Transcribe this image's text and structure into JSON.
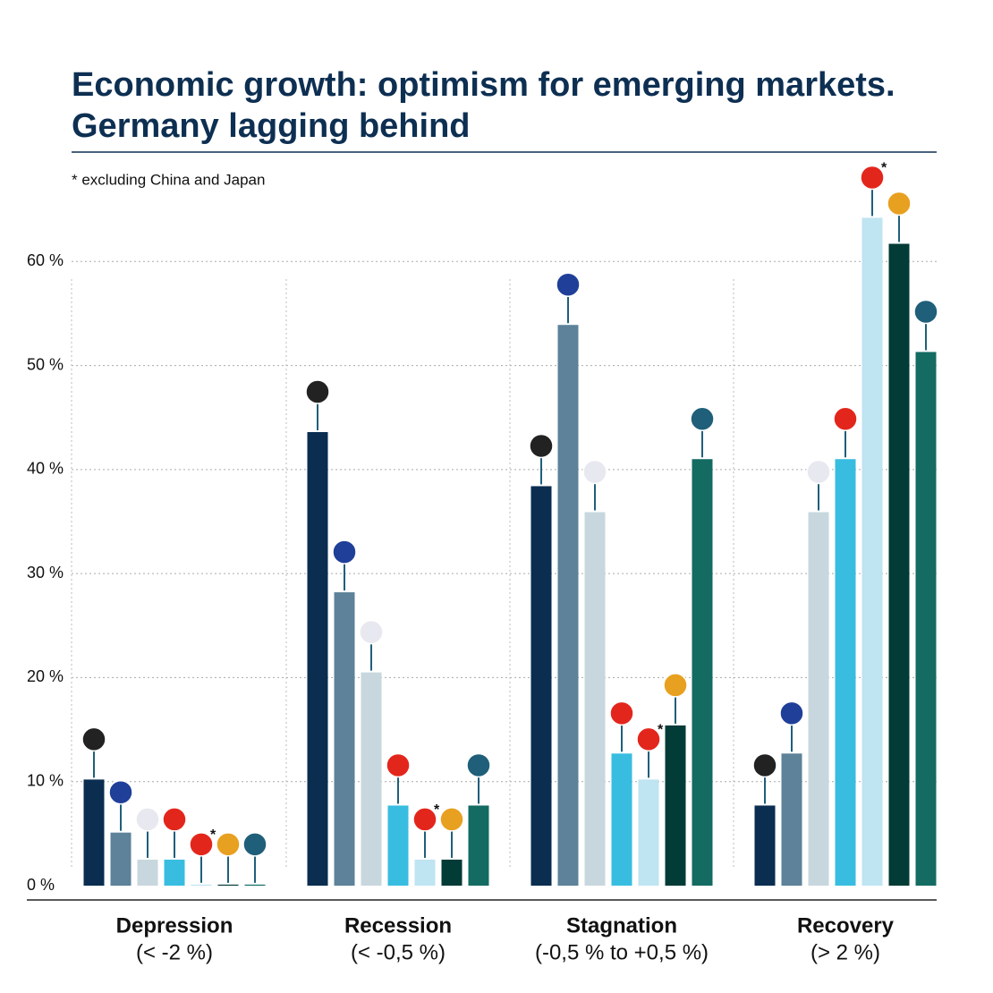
{
  "chart_data": {
    "type": "bar",
    "title": [
      "Economic growth: optimism for emerging markets.",
      "Germany lagging behind"
    ],
    "note": "* excluding China and Japan",
    "asterisk": "*",
    "categories": [
      "Depression",
      "Recession",
      "Stagnation",
      "Recovery"
    ],
    "category_ranges": [
      "(< -2 %)",
      "(< -0,5 %)",
      "(-0,5 %  to  +0,5 %)",
      "(> 2 %)"
    ],
    "series": [
      {
        "color": "#0a2d50",
        "values": [
          10.2,
          43.6,
          38.4,
          7.7
        ]
      },
      {
        "color": "#5d8299",
        "values": [
          5.1,
          28.2,
          53.9,
          12.7
        ]
      },
      {
        "color": "#c8d7de",
        "values": [
          2.5,
          20.5,
          35.9,
          35.9
        ]
      },
      {
        "color": "#38bde0",
        "values": [
          2.5,
          7.7,
          12.7,
          41.0
        ]
      },
      {
        "color": "#bfe4f2",
        "values": [
          0.1,
          2.5,
          10.2,
          64.2
        ]
      },
      {
        "color": "#033b36",
        "values": [
          0.1,
          2.5,
          15.4,
          61.7
        ]
      },
      {
        "color": "#136b62",
        "values": [
          0.1,
          7.7,
          41.0,
          51.3
        ]
      }
    ],
    "ylim": [
      0,
      70
    ],
    "yticks": [
      {
        "value": 0,
        "label": "0 %"
      },
      {
        "value": 10,
        "label": "10 %"
      },
      {
        "value": 20,
        "label": "20 %"
      },
      {
        "value": 30,
        "label": "30 %"
      },
      {
        "value": 40,
        "label": "40 %"
      },
      {
        "value": 50,
        "label": "50 %"
      },
      {
        "value": 60,
        "label": "60 %"
      }
    ],
    "grid": true
  }
}
